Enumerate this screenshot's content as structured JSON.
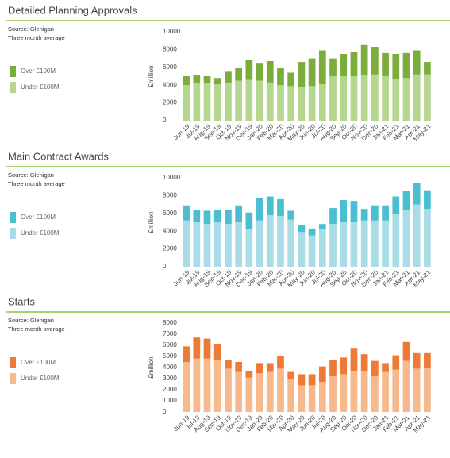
{
  "chart_data": [
    {
      "type": "bar",
      "stacked": true,
      "title": "Detailed Planning Approvals",
      "source": "Source: Glenigan",
      "subtitle": "Three month average",
      "y_label": "£million",
      "categories": [
        "Jun-19",
        "Jul-19",
        "Aug-19",
        "Sep-19",
        "Oct-19",
        "Nov-19",
        "Dec-19",
        "Jan-20",
        "Feb-20",
        "Mar-20",
        "Apr-20",
        "May-20",
        "Jun-20",
        "Jul-20",
        "Aug-20",
        "Sep-20",
        "Oct-20",
        "Nov-20",
        "Dec-20",
        "Jan-21",
        "Feb-21",
        "Mar-21",
        "Apr-21",
        "May-21"
      ],
      "series": [
        {
          "name": "Under £100M",
          "color": "#b5d68e",
          "values": [
            4000,
            4200,
            4200,
            4100,
            4200,
            4500,
            4600,
            4500,
            4300,
            4000,
            3900,
            3800,
            3900,
            4100,
            5000,
            5000,
            5000,
            5100,
            5200,
            5000,
            4700,
            4800,
            5200,
            5200
          ]
        },
        {
          "name": "Over £100M",
          "color": "#7aad3b",
          "values": [
            1000,
            900,
            800,
            700,
            1300,
            1400,
            2200,
            2000,
            2400,
            1900,
            1500,
            2800,
            3100,
            3800,
            2000,
            2500,
            2700,
            3400,
            3100,
            2600,
            2800,
            2800,
            2700,
            1400
          ]
        }
      ],
      "ylim": [
        0,
        10000
      ],
      "yticks": [
        0,
        2000,
        4000,
        6000,
        8000,
        10000
      ]
    },
    {
      "type": "bar",
      "stacked": true,
      "title": "Main Contract Awards",
      "source": "Source: Glenigan",
      "subtitle": "Three month average",
      "y_label": "£million",
      "categories": [
        "Jun-19",
        "Jul-19",
        "Aug-19",
        "Sep-19",
        "Oct-19",
        "Nov-19",
        "Dec-19",
        "Jan-20",
        "Feb-20",
        "Mar-20",
        "Apr-20",
        "May-20",
        "Jun-20",
        "Jul-20",
        "Aug-20",
        "Sep-20",
        "Oct-20",
        "Nov-20",
        "Dec-20",
        "Jan-21",
        "Feb-21",
        "Mar-21",
        "Apr-21",
        "May-21"
      ],
      "series": [
        {
          "name": "Under £100M",
          "color": "#a8dde8",
          "values": [
            5200,
            5000,
            4800,
            5000,
            4800,
            5000,
            4200,
            5200,
            5800,
            5700,
            5300,
            3900,
            3500,
            4200,
            4800,
            5000,
            5000,
            5200,
            5200,
            5200,
            5900,
            6400,
            7000,
            6500
          ]
        },
        {
          "name": "Over £100M",
          "color": "#4bbfd1",
          "values": [
            1700,
            1400,
            1500,
            1400,
            1600,
            1900,
            1900,
            2500,
            2100,
            1900,
            1000,
            800,
            800,
            600,
            1800,
            2500,
            2400,
            1300,
            1700,
            1700,
            2000,
            2100,
            2400,
            2100
          ]
        }
      ],
      "ylim": [
        0,
        10000
      ],
      "yticks": [
        0,
        2000,
        4000,
        6000,
        8000,
        10000
      ]
    },
    {
      "type": "bar",
      "stacked": true,
      "title": "Starts",
      "source": "Source: Glenigan",
      "subtitle": "Three month average",
      "y_label": "£million",
      "categories": [
        "Jun-19",
        "Jul-19",
        "Aug-19",
        "Sep-19",
        "Oct-19",
        "Nov-19",
        "Dec-19",
        "Jan-20",
        "Feb-20",
        "Mar-20",
        "Apr-20",
        "May-20",
        "Jun-20",
        "Jul-20",
        "Aug-20",
        "Sep-20",
        "Oct-20",
        "Nov-20",
        "Dec-20",
        "Jan-21",
        "Feb-21",
        "Mar-21",
        "Apr-21",
        "May-21"
      ],
      "series": [
        {
          "name": "Under £100M",
          "color": "#f7b88c",
          "values": [
            4500,
            4800,
            4800,
            4700,
            3900,
            3600,
            3100,
            3500,
            3600,
            3900,
            3000,
            2400,
            2400,
            2700,
            3200,
            3400,
            3700,
            3700,
            3200,
            3600,
            3800,
            4600,
            3900,
            4000
          ]
        },
        {
          "name": "Over £100M",
          "color": "#ee7b35",
          "values": [
            1400,
            1900,
            1800,
            1400,
            800,
            900,
            600,
            900,
            800,
            1100,
            600,
            1000,
            1000,
            1400,
            1500,
            1500,
            2000,
            1500,
            1400,
            800,
            1300,
            1700,
            1400,
            1300
          ]
        }
      ],
      "ylim": [
        0,
        8000
      ],
      "yticks": [
        0,
        1000,
        2000,
        3000,
        4000,
        5000,
        6000,
        7000,
        8000
      ]
    }
  ]
}
